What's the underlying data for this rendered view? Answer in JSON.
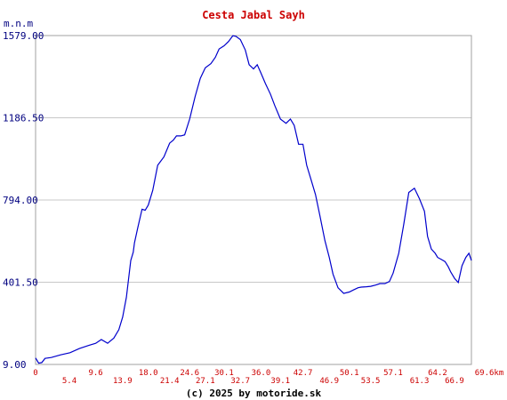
{
  "chart_data": {
    "type": "line",
    "title": "Cesta Jabal Sayh",
    "ylabel": "m.n.m",
    "x_unit": "km",
    "credit": "(c) 2025 by motoride.sk",
    "xlim": [
      0,
      69.6
    ],
    "ylim": [
      9.0,
      1579.0
    ],
    "y_ticks": [
      "9.00",
      "401.50",
      "794.00",
      "1186.50",
      "1579.00"
    ],
    "y_tick_values": [
      9.0,
      401.5,
      794.0,
      1186.5,
      1579.0
    ],
    "x_ticks_upper": [
      "0",
      "9.6",
      "18.0",
      "24.6",
      "30.1",
      "36.0",
      "42.7",
      "50.1",
      "57.1",
      "64.2",
      "69.6km"
    ],
    "x_ticks_upper_values": [
      0,
      9.6,
      18.0,
      24.6,
      30.1,
      36.0,
      42.7,
      50.1,
      57.1,
      64.2,
      69.6
    ],
    "x_ticks_lower": [
      "5.4",
      "13.9",
      "21.4",
      "27.1",
      "32.7",
      "39.1",
      "46.9",
      "53.5",
      "61.3",
      "66.9"
    ],
    "x_ticks_lower_values": [
      5.4,
      13.9,
      21.4,
      27.1,
      32.7,
      39.1,
      46.9,
      53.5,
      61.3,
      66.9
    ],
    "grid": true,
    "series": [
      {
        "color": "#0000cc",
        "x": [
          0,
          0.5,
          1,
          1.5,
          2.5,
          4,
          5.5,
          7,
          8.5,
          9.6,
          10.5,
          11.5,
          12.5,
          13.3,
          13.9,
          14.5,
          15.2,
          15.6,
          15.8,
          16.3,
          17,
          17.5,
          18,
          18.7,
          19.5,
          20.5,
          21.4,
          22,
          22.5,
          23.2,
          23.8,
          24.6,
          25.5,
          26.3,
          27.1,
          28,
          28.7,
          29.3,
          30.1,
          30.8,
          31.5,
          32,
          32.7,
          33.5,
          34.1,
          34.8,
          35.4,
          36,
          36.7,
          37.5,
          38.2,
          39.1,
          40,
          40.7,
          41.3,
          42,
          42.7,
          43.3,
          44,
          44.7,
          45.4,
          46.2,
          46.9,
          47.5,
          48.3,
          49.2,
          50.1,
          50.8,
          51.5,
          52,
          52.8,
          53.5,
          54.3,
          55,
          55.8,
          56.5,
          57.1,
          58,
          58.8,
          59.6,
          60.5,
          61.3,
          62.1,
          62.6,
          63.2,
          63.8,
          64.2,
          64.8,
          65.4,
          65.9,
          66.3,
          66.9,
          67.5,
          68.1,
          68.7,
          69.2,
          69.6
        ],
        "y": [
          40,
          15,
          18,
          38,
          42,
          55,
          65,
          85,
          100,
          110,
          128,
          110,
          135,
          175,
          235,
          330,
          505,
          545,
          590,
          660,
          750,
          745,
          770,
          840,
          960,
          1000,
          1065,
          1080,
          1100,
          1100,
          1105,
          1180,
          1290,
          1375,
          1425,
          1445,
          1475,
          1515,
          1530,
          1550,
          1578,
          1575,
          1560,
          1510,
          1440,
          1420,
          1440,
          1400,
          1350,
          1300,
          1245,
          1180,
          1160,
          1180,
          1150,
          1060,
          1060,
          960,
          890,
          820,
          720,
          600,
          520,
          440,
          375,
          348,
          355,
          365,
          375,
          378,
          380,
          382,
          388,
          395,
          395,
          405,
          445,
          540,
          680,
          830,
          850,
          800,
          740,
          620,
          560,
          540,
          520,
          510,
          500,
          475,
          450,
          420,
          400,
          480,
          520,
          540,
          505
        ]
      }
    ]
  }
}
